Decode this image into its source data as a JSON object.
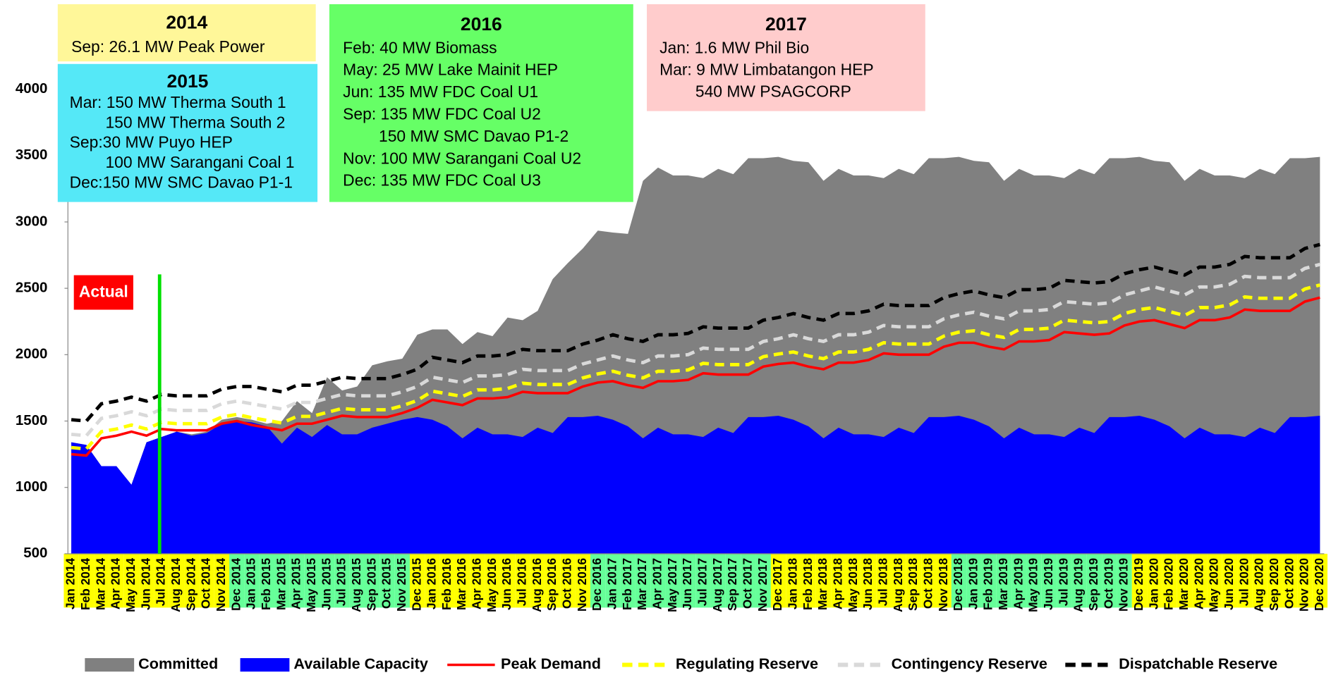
{
  "chart_data": {
    "type": "area",
    "categories": [
      "Jan 2014",
      "Feb 2014",
      "Mar 2014",
      "Apr 2014",
      "May 2014",
      "Jun 2014",
      "Jul 2014",
      "Aug 2014",
      "Sep 2014",
      "Oct 2014",
      "Nov 2014",
      "Dec 2014",
      "Jan 2015",
      "Feb 2015",
      "Mar 2015",
      "Apr 2015",
      "May 2015",
      "Jun 2015",
      "Jul 2015",
      "Aug 2015",
      "Sep 2015",
      "Oct 2015",
      "Nov 2015",
      "Dec 2015",
      "Jan 2016",
      "Feb 2016",
      "Mar 2016",
      "Apr 2016",
      "May 2016",
      "Jun 2016",
      "Jul 2016",
      "Aug 2016",
      "Sep 2016",
      "Oct 2016",
      "Nov 2016",
      "Dec 2016",
      "Jan 2017",
      "Feb 2017",
      "Mar 2017",
      "Apr 2017",
      "May 2017",
      "Jun 2017",
      "Jul 2017",
      "Aug 2017",
      "Sep 2017",
      "Oct 2017",
      "Nov 2017",
      "Dec 2017",
      "Jan 2018",
      "Feb 2018",
      "Mar 2018",
      "Apr 2018",
      "May 2018",
      "Jun 2018",
      "Jul 2018",
      "Aug 2018",
      "Sep 2018",
      "Oct 2018",
      "Nov 2018",
      "Dec 2018",
      "Jan 2019",
      "Feb 2019",
      "Mar 2019",
      "Apr 2019",
      "May 2019",
      "Jun 2019",
      "Jul 2019",
      "Aug 2019",
      "Sep 2019",
      "Oct 2019",
      "Nov 2019",
      "Dec 2019",
      "Jan 2020",
      "Feb 2020",
      "Mar 2020",
      "Apr 2020",
      "May 2020",
      "Jun 2020",
      "Jul 2020",
      "Aug 2020",
      "Sep 2020",
      "Oct 2020",
      "Nov 2020",
      "Dec 2020"
    ],
    "series": [
      {
        "name": "Committed",
        "kind": "area",
        "color": "#808080",
        "values": [
          1340,
          1320,
          1160,
          1160,
          1020,
          1340,
          1380,
          1420,
          1400,
          1420,
          1510,
          1530,
          1510,
          1480,
          1500,
          1650,
          1560,
          1830,
          1730,
          1760,
          1920,
          1950,
          1970,
          2150,
          2190,
          2190,
          2080,
          2170,
          2140,
          2280,
          2260,
          2330,
          2570,
          2690,
          2800,
          2935,
          2920,
          2910,
          3310,
          3410,
          3350,
          3350,
          3330,
          3400,
          3360,
          3480,
          3480,
          3490,
          3460,
          3450,
          3310,
          3400,
          3350,
          3350,
          3330,
          3400,
          3360,
          3480,
          3480,
          3490,
          3460,
          3450,
          3310,
          3400,
          3350,
          3350,
          3330,
          3400,
          3360,
          3480,
          3480,
          3490,
          3460,
          3450,
          3310,
          3400,
          3350,
          3350,
          3330,
          3400,
          3360,
          3480,
          3480,
          3490
        ]
      },
      {
        "name": "Available Capacity",
        "kind": "area",
        "color": "#0000ff",
        "values": [
          1340,
          1320,
          1160,
          1160,
          1020,
          1340,
          1380,
          1420,
          1390,
          1410,
          1480,
          1500,
          1490,
          1460,
          1330,
          1450,
          1380,
          1470,
          1400,
          1400,
          1450,
          1480,
          1510,
          1530,
          1510,
          1460,
          1370,
          1450,
          1400,
          1400,
          1380,
          1450,
          1410,
          1530,
          1530,
          1540,
          1510,
          1460,
          1370,
          1450,
          1400,
          1400,
          1380,
          1450,
          1410,
          1530,
          1530,
          1540,
          1510,
          1460,
          1370,
          1450,
          1400,
          1400,
          1380,
          1450,
          1410,
          1530,
          1530,
          1540,
          1510,
          1460,
          1370,
          1450,
          1400,
          1400,
          1380,
          1450,
          1410,
          1530,
          1530,
          1540,
          1510,
          1460,
          1370,
          1450,
          1400,
          1400,
          1380,
          1450,
          1410,
          1530,
          1530,
          1540
        ]
      },
      {
        "name": "Peak Demand",
        "kind": "line",
        "color": "#ff0000",
        "dashed": false,
        "values": [
          1250,
          1240,
          1370,
          1390,
          1420,
          1390,
          1440,
          1430,
          1430,
          1430,
          1480,
          1500,
          1470,
          1450,
          1430,
          1480,
          1480,
          1510,
          1540,
          1530,
          1530,
          1530,
          1560,
          1600,
          1660,
          1640,
          1620,
          1670,
          1670,
          1680,
          1720,
          1710,
          1710,
          1710,
          1760,
          1790,
          1800,
          1770,
          1750,
          1800,
          1800,
          1810,
          1860,
          1850,
          1850,
          1850,
          1910,
          1930,
          1940,
          1910,
          1890,
          1940,
          1940,
          1960,
          2010,
          2000,
          2000,
          2000,
          2060,
          2090,
          2090,
          2060,
          2040,
          2100,
          2100,
          2110,
          2170,
          2160,
          2150,
          2160,
          2220,
          2250,
          2260,
          2230,
          2200,
          2260,
          2260,
          2280,
          2340,
          2330,
          2330,
          2330,
          2400,
          2430
        ]
      },
      {
        "name": "Regulating Reserve",
        "kind": "line",
        "color": "#ffff00",
        "dashed": true,
        "values": [
          1300,
          1290,
          1420,
          1440,
          1470,
          1440,
          1490,
          1480,
          1480,
          1480,
          1530,
          1550,
          1525,
          1505,
          1485,
          1535,
          1535,
          1565,
          1595,
          1585,
          1585,
          1585,
          1615,
          1655,
          1725,
          1705,
          1685,
          1735,
          1735,
          1745,
          1785,
          1775,
          1775,
          1775,
          1825,
          1855,
          1875,
          1845,
          1825,
          1875,
          1875,
          1885,
          1935,
          1925,
          1925,
          1925,
          1985,
          2005,
          2020,
          1990,
          1970,
          2020,
          2020,
          2040,
          2090,
          2080,
          2080,
          2080,
          2140,
          2170,
          2180,
          2150,
          2130,
          2190,
          2190,
          2200,
          2260,
          2250,
          2240,
          2250,
          2310,
          2340,
          2355,
          2325,
          2295,
          2355,
          2355,
          2375,
          2435,
          2425,
          2425,
          2425,
          2495,
          2525
        ]
      },
      {
        "name": "Contingency Reserve",
        "kind": "line",
        "color": "#d9d9d9",
        "dashed": true,
        "values": [
          1400,
          1390,
          1520,
          1540,
          1570,
          1540,
          1590,
          1580,
          1580,
          1580,
          1630,
          1650,
          1630,
          1610,
          1590,
          1640,
          1640,
          1670,
          1700,
          1690,
          1690,
          1690,
          1720,
          1760,
          1830,
          1810,
          1790,
          1840,
          1840,
          1850,
          1890,
          1880,
          1880,
          1880,
          1930,
          1960,
          1990,
          1960,
          1940,
          1990,
          1990,
          2000,
          2050,
          2040,
          2040,
          2040,
          2100,
          2120,
          2150,
          2120,
          2100,
          2150,
          2150,
          2170,
          2220,
          2210,
          2210,
          2210,
          2270,
          2300,
          2320,
          2290,
          2270,
          2330,
          2330,
          2340,
          2400,
          2390,
          2380,
          2390,
          2450,
          2480,
          2510,
          2480,
          2450,
          2510,
          2510,
          2530,
          2590,
          2580,
          2580,
          2580,
          2650,
          2680
        ]
      },
      {
        "name": "Dispatchable Reserve",
        "kind": "line",
        "color": "#000000",
        "dashed": true,
        "values": [
          1510,
          1500,
          1630,
          1650,
          1680,
          1650,
          1700,
          1690,
          1690,
          1690,
          1740,
          1760,
          1760,
          1740,
          1720,
          1770,
          1770,
          1800,
          1830,
          1820,
          1820,
          1820,
          1850,
          1890,
          1980,
          1960,
          1940,
          1990,
          1990,
          2000,
          2040,
          2030,
          2030,
          2030,
          2080,
          2110,
          2150,
          2120,
          2100,
          2150,
          2150,
          2160,
          2210,
          2200,
          2200,
          2200,
          2260,
          2280,
          2310,
          2280,
          2260,
          2310,
          2310,
          2330,
          2380,
          2370,
          2370,
          2370,
          2430,
          2460,
          2480,
          2450,
          2430,
          2490,
          2490,
          2500,
          2560,
          2550,
          2540,
          2550,
          2610,
          2640,
          2660,
          2630,
          2600,
          2660,
          2660,
          2680,
          2740,
          2730,
          2730,
          2730,
          2800,
          2830
        ]
      }
    ],
    "ylim": [
      500,
      4000
    ],
    "yticks": [
      500,
      1000,
      1500,
      2000,
      2500,
      3000,
      3500,
      4000
    ],
    "actual_label": "Actual",
    "annotations": [
      {
        "title": "2014",
        "lines": [
          "Sep: 26.1 MW Peak Power"
        ]
      },
      {
        "title": "2015",
        "lines": [
          "Mar: 150 MW Therma South 1",
          "        150 MW Therma South 2",
          "Sep:30 MW Puyo HEP",
          "        100 MW Sarangani Coal 1",
          "Dec:150 MW SMC Davao P1-1"
        ]
      },
      {
        "title": "2016",
        "lines": [
          "Feb: 40 MW Biomass",
          "May: 25 MW Lake Mainit HEP",
          "Jun: 135 MW FDC Coal U1",
          "Sep: 135 MW FDC Coal U2",
          "        150 MW SMC Davao P1-2",
          "Nov: 100 MW Sarangani Coal U2",
          "Dec: 135 MW FDC Coal U3"
        ]
      },
      {
        "title": "2017",
        "lines": [
          "Jan: 1.6 MW Phil Bio",
          "Mar: 9 MW Limbatangon HEP",
          "        540 MW PSAGCORP"
        ]
      }
    ]
  }
}
